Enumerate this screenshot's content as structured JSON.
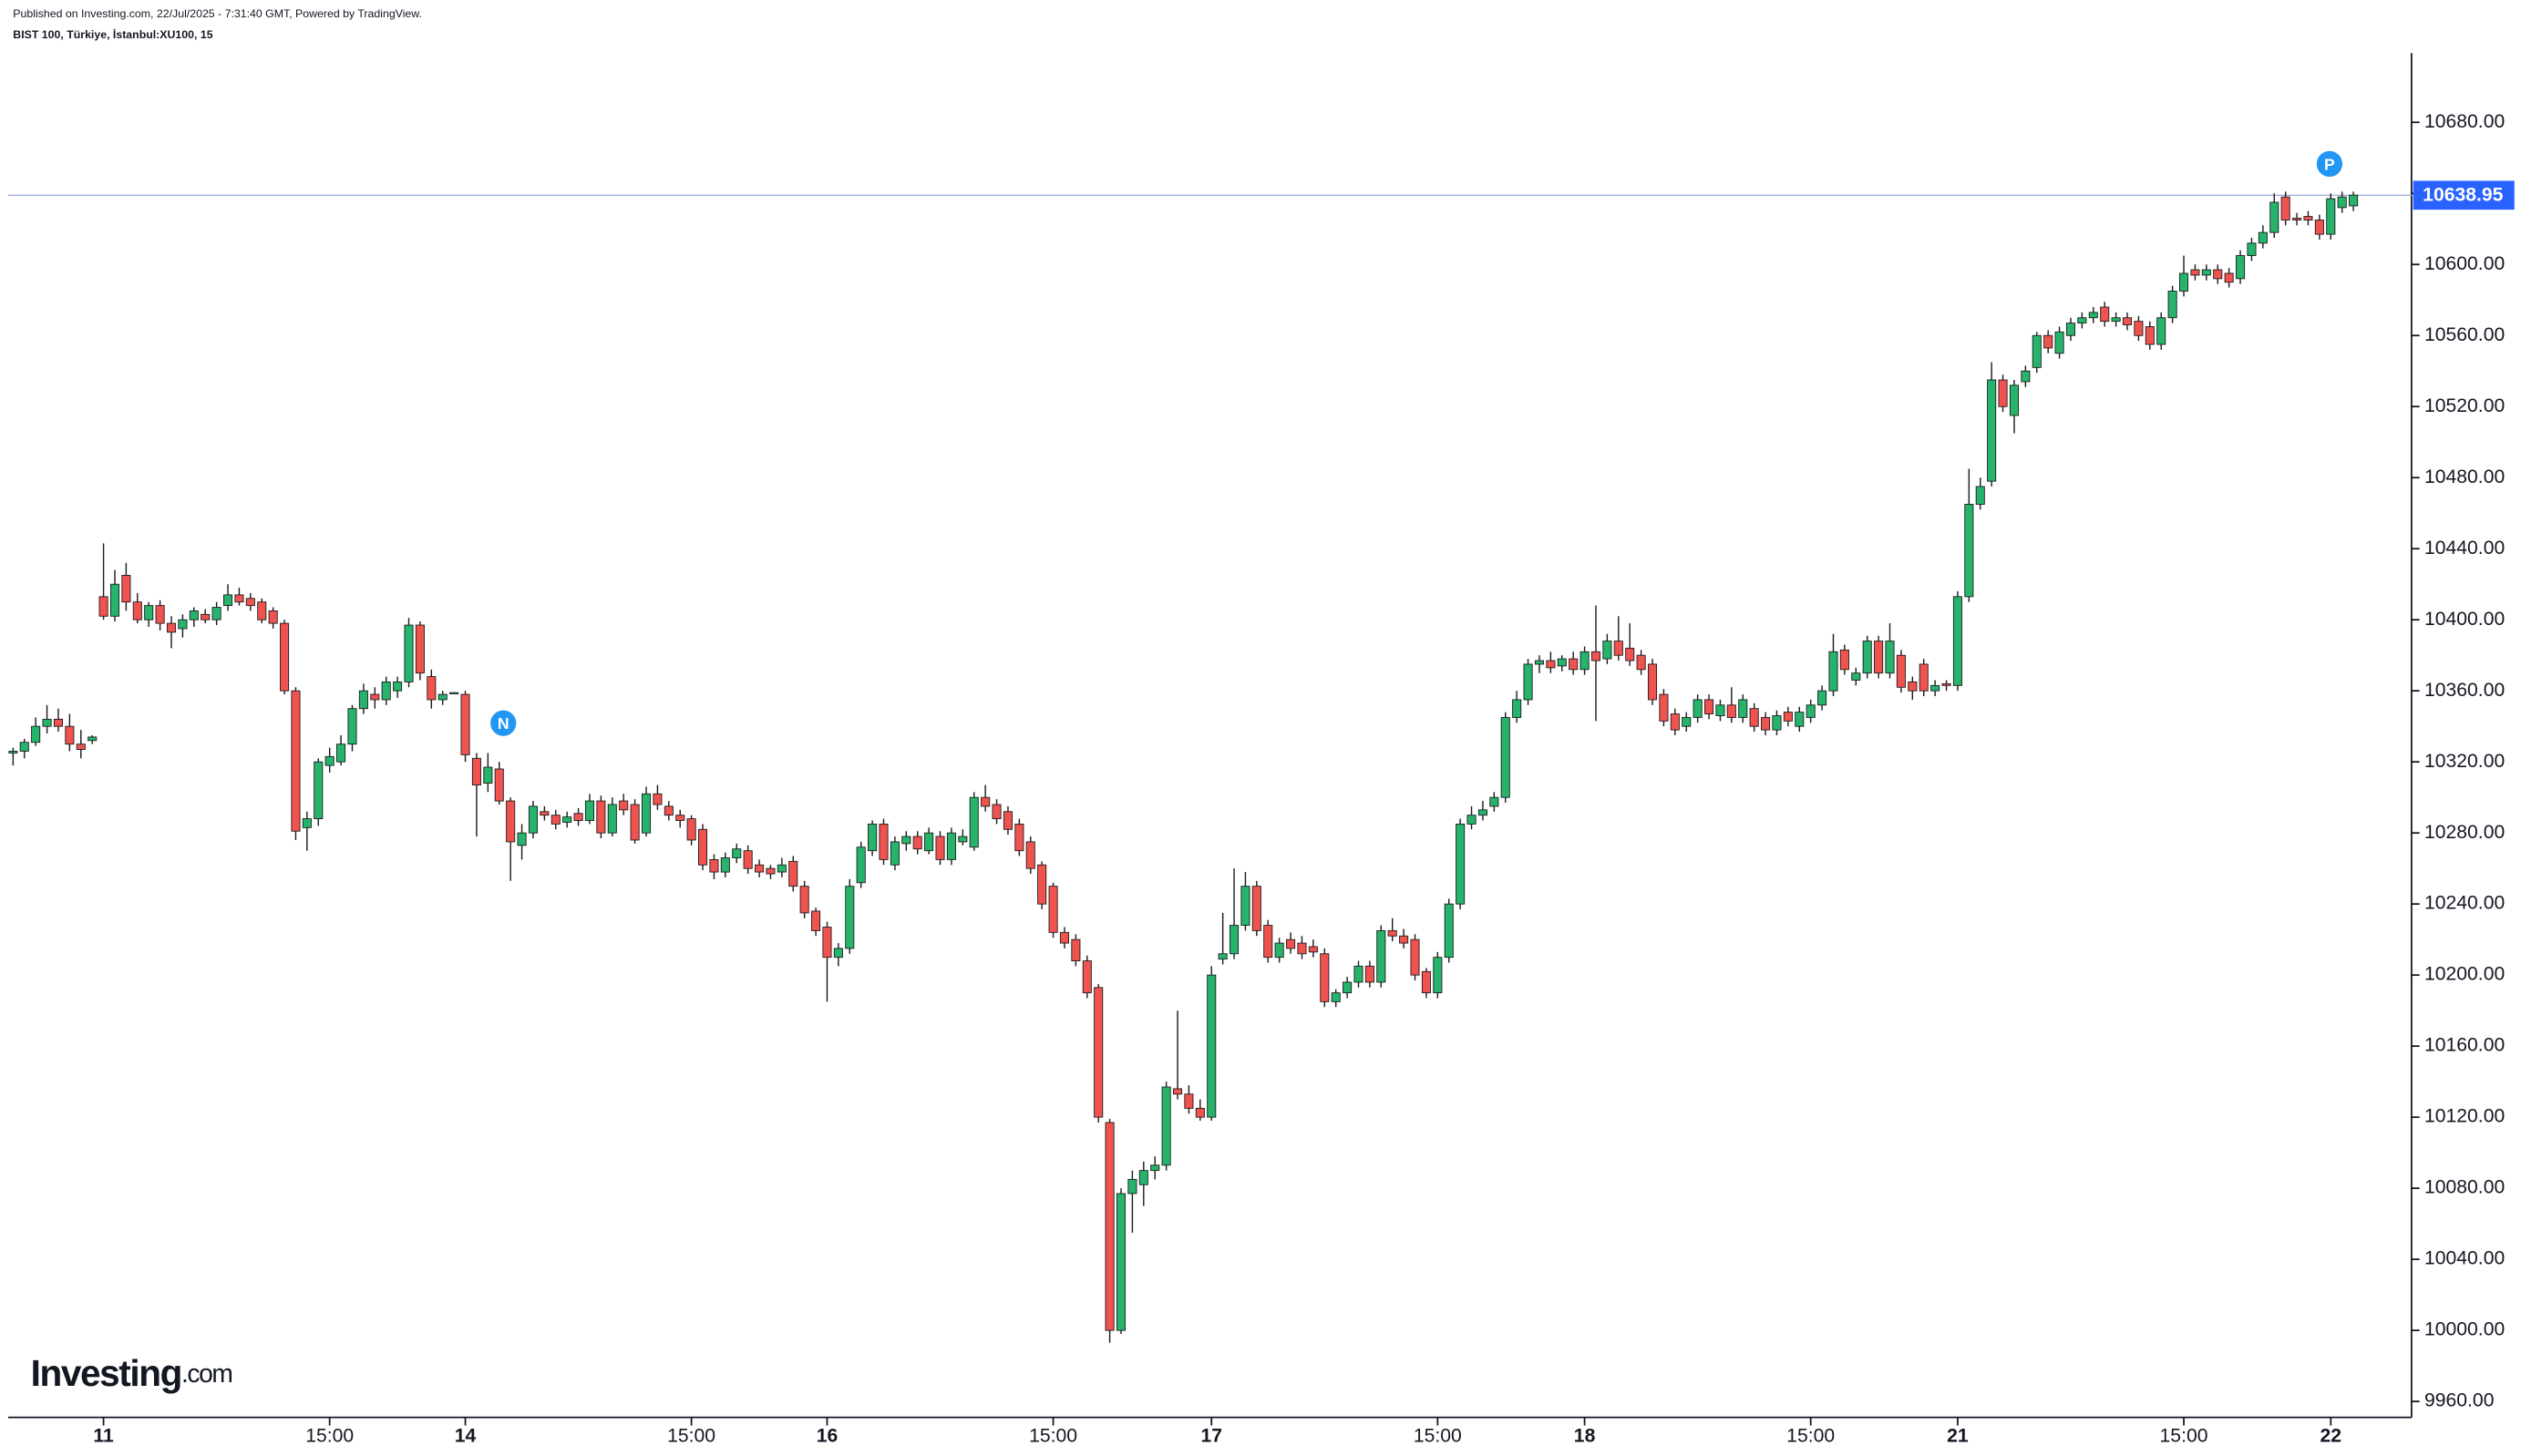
{
  "chart_data": {
    "type": "candlestick",
    "subtitle": "Published on Investing.com, 22/Jul/2025 - 7:31:40 GMT, Powered by TradingView.",
    "title": "BIST 100, Türkiye, İstanbul:XU100, 15",
    "brand": [
      "Investing",
      ".com"
    ],
    "markers": [
      "N",
      "P"
    ],
    "up_color": "#26b36b",
    "down_color": "#ef5350",
    "last_price": {
      "value": 10638.95,
      "label": "10638.95"
    },
    "last_price_color": "#2962ff",
    "xlim": [
      -1,
      212
    ],
    "xticks": [
      {
        "value": 8,
        "label": "11"
      },
      {
        "value": 28,
        "label": "15:00"
      },
      {
        "value": 40,
        "label": "14"
      },
      {
        "value": 60,
        "label": "15:00"
      },
      {
        "value": 72,
        "label": "16"
      },
      {
        "value": 92,
        "label": "15:00"
      },
      {
        "value": 106,
        "label": "17"
      },
      {
        "value": 126,
        "label": "15:00"
      },
      {
        "value": 139,
        "label": "18"
      },
      {
        "value": 159,
        "label": "15:00"
      },
      {
        "value": 172,
        "label": "21"
      },
      {
        "value": 192,
        "label": "15:00"
      },
      {
        "value": 205,
        "label": "22"
      }
    ],
    "ylim": [
      9951,
      10719
    ],
    "yticks": [
      {
        "value": 9960,
        "label": "9960.00"
      },
      {
        "value": 10000,
        "label": "10000.00"
      },
      {
        "value": 10040,
        "label": "10040.00"
      },
      {
        "value": 10080,
        "label": "10080.00"
      },
      {
        "value": 10120,
        "label": "10120.00"
      },
      {
        "value": 10160,
        "label": "10160.00"
      },
      {
        "value": 10200,
        "label": "10200.00"
      },
      {
        "value": 10240,
        "label": "10240.00"
      },
      {
        "value": 10280,
        "label": "10280.00"
      },
      {
        "value": 10320,
        "label": "10320.00"
      },
      {
        "value": 10360,
        "label": "10360.00"
      },
      {
        "value": 10400,
        "label": "10400.00"
      },
      {
        "value": 10440,
        "label": "10440.00"
      },
      {
        "value": 10480,
        "label": "10480.00"
      },
      {
        "value": 10520,
        "label": "10520.00"
      },
      {
        "value": 10560,
        "label": "10560.00"
      },
      {
        "value": 10600,
        "label": "10600.00"
      },
      {
        "value": 10640,
        "label": "10640.00"
      },
      {
        "value": 10680,
        "label": "10680.00"
      }
    ],
    "ohlc": [
      [
        10325,
        10328,
        10318,
        10326
      ],
      [
        10326,
        10333,
        10322,
        10331
      ],
      [
        10331,
        10345,
        10329,
        10340
      ],
      [
        10340,
        10352,
        10336,
        10344
      ],
      [
        10344,
        10350,
        10337,
        10340
      ],
      [
        10340,
        10347,
        10326,
        10330
      ],
      [
        10330,
        10338,
        10322,
        10327
      ],
      [
        10332,
        10335,
        10330,
        10334
      ],
      [
        10413,
        10443,
        10400,
        10402
      ],
      [
        10402,
        10428,
        10399,
        10420
      ],
      [
        10425,
        10432,
        10405,
        10410
      ],
      [
        10410,
        10415,
        10398,
        10400
      ],
      [
        10400,
        10410,
        10396,
        10408
      ],
      [
        10408,
        10411,
        10394,
        10398
      ],
      [
        10398,
        10402,
        10384,
        10393
      ],
      [
        10395,
        10403,
        10390,
        10400
      ],
      [
        10400,
        10407,
        10396,
        10405
      ],
      [
        10403,
        10406,
        10398,
        10400
      ],
      [
        10400,
        10410,
        10397,
        10407
      ],
      [
        10408,
        10420,
        10405,
        10414
      ],
      [
        10414,
        10418,
        10408,
        10410
      ],
      [
        10412,
        10415,
        10405,
        10408
      ],
      [
        10410,
        10412,
        10398,
        10400
      ],
      [
        10405,
        10407,
        10395,
        10398
      ],
      [
        10398,
        10400,
        10358,
        10360
      ],
      [
        10360,
        10362,
        10276,
        10281
      ],
      [
        10283,
        10292,
        10270,
        10288
      ],
      [
        10288,
        10322,
        10284,
        10320
      ],
      [
        10318,
        10328,
        10314,
        10323
      ],
      [
        10320,
        10335,
        10318,
        10330
      ],
      [
        10330,
        10352,
        10326,
        10350
      ],
      [
        10350,
        10364,
        10347,
        10360
      ],
      [
        10358,
        10362,
        10350,
        10355
      ],
      [
        10355,
        10368,
        10352,
        10365
      ],
      [
        10360,
        10368,
        10356,
        10365
      ],
      [
        10365,
        10401,
        10362,
        10397
      ],
      [
        10397,
        10399,
        10366,
        10370
      ],
      [
        10368,
        10372,
        10350,
        10355
      ],
      [
        10355,
        10360,
        10352,
        10358
      ],
      [
        10359,
        10359,
        10359,
        10359
      ],
      [
        10358,
        10360,
        10320,
        10324
      ],
      [
        10322,
        10325,
        10278,
        10307
      ],
      [
        10308,
        10325,
        10303,
        10317
      ],
      [
        10316,
        10320,
        10296,
        10298
      ],
      [
        10298,
        10300,
        10253,
        10275
      ],
      [
        10273,
        10285,
        10265,
        10280
      ],
      [
        10280,
        10298,
        10277,
        10295
      ],
      [
        10292,
        10295,
        10287,
        10290
      ],
      [
        10290,
        10293,
        10282,
        10285
      ],
      [
        10286,
        10292,
        10283,
        10289
      ],
      [
        10291,
        10294,
        10284,
        10287
      ],
      [
        10287,
        10302,
        10285,
        10298
      ],
      [
        10298,
        10301,
        10277,
        10280
      ],
      [
        10280,
        10300,
        10278,
        10296
      ],
      [
        10298,
        10302,
        10290,
        10293
      ],
      [
        10296,
        10299,
        10274,
        10276
      ],
      [
        10280,
        10306,
        10278,
        10302
      ],
      [
        10302,
        10307,
        10293,
        10296
      ],
      [
        10295,
        10298,
        10287,
        10290
      ],
      [
        10290,
        10293,
        10283,
        10287
      ],
      [
        10288,
        10290,
        10273,
        10276
      ],
      [
        10282,
        10285,
        10259,
        10262
      ],
      [
        10265,
        10268,
        10254,
        10258
      ],
      [
        10258,
        10269,
        10255,
        10266
      ],
      [
        10266,
        10274,
        10263,
        10271
      ],
      [
        10270,
        10273,
        10257,
        10260
      ],
      [
        10262,
        10265,
        10255,
        10258
      ],
      [
        10260,
        10262,
        10254,
        10257
      ],
      [
        10258,
        10266,
        10255,
        10262
      ],
      [
        10264,
        10267,
        10247,
        10250
      ],
      [
        10250,
        10253,
        10232,
        10235
      ],
      [
        10236,
        10238,
        10222,
        10225
      ],
      [
        10227,
        10230,
        10185,
        10210
      ],
      [
        10210,
        10218,
        10205,
        10215
      ],
      [
        10215,
        10254,
        10212,
        10250
      ],
      [
        10252,
        10275,
        10249,
        10272
      ],
      [
        10270,
        10287,
        10267,
        10285
      ],
      [
        10285,
        10288,
        10262,
        10265
      ],
      [
        10262,
        10278,
        10259,
        10275
      ],
      [
        10274,
        10281,
        10270,
        10278
      ],
      [
        10278,
        10281,
        10268,
        10271
      ],
      [
        10270,
        10283,
        10268,
        10280
      ],
      [
        10278,
        10281,
        10262,
        10265
      ],
      [
        10265,
        10283,
        10262,
        10280
      ],
      [
        10275,
        10282,
        10273,
        10278
      ],
      [
        10272,
        10303,
        10270,
        10300
      ],
      [
        10300,
        10307,
        10292,
        10295
      ],
      [
        10296,
        10299,
        10285,
        10288
      ],
      [
        10292,
        10295,
        10279,
        10282
      ],
      [
        10285,
        10288,
        10267,
        10270
      ],
      [
        10275,
        10278,
        10257,
        10260
      ],
      [
        10262,
        10264,
        10237,
        10240
      ],
      [
        10250,
        10252,
        10221,
        10224
      ],
      [
        10224,
        10227,
        10215,
        10218
      ],
      [
        10220,
        10223,
        10205,
        10208
      ],
      [
        10208,
        10211,
        10187,
        10190
      ],
      [
        10193,
        10195,
        10117,
        10120
      ],
      [
        10117,
        10119,
        9993,
        10000
      ],
      [
        10000,
        10080,
        9998,
        10077
      ],
      [
        10077,
        10090,
        10055,
        10085
      ],
      [
        10082,
        10095,
        10070,
        10090
      ],
      [
        10090,
        10098,
        10085,
        10093
      ],
      [
        10093,
        10140,
        10090,
        10137
      ],
      [
        10136,
        10180,
        10130,
        10133
      ],
      [
        10133,
        10138,
        10122,
        10125
      ],
      [
        10125,
        10130,
        10118,
        10120
      ],
      [
        10120,
        10205,
        10118,
        10200
      ],
      [
        10209,
        10235,
        10206,
        10212
      ],
      [
        10212,
        10260,
        10209,
        10228
      ],
      [
        10228,
        10258,
        10225,
        10250
      ],
      [
        10250,
        10253,
        10222,
        10225
      ],
      [
        10228,
        10231,
        10207,
        10210
      ],
      [
        10210,
        10221,
        10207,
        10218
      ],
      [
        10220,
        10224,
        10212,
        10215
      ],
      [
        10218,
        10222,
        10209,
        10212
      ],
      [
        10216,
        10220,
        10210,
        10213
      ],
      [
        10212,
        10215,
        10182,
        10185
      ],
      [
        10185,
        10192,
        10182,
        10190
      ],
      [
        10190,
        10199,
        10187,
        10196
      ],
      [
        10196,
        10208,
        10193,
        10205
      ],
      [
        10205,
        10208,
        10193,
        10196
      ],
      [
        10196,
        10228,
        10193,
        10225
      ],
      [
        10225,
        10232,
        10219,
        10222
      ],
      [
        10222,
        10226,
        10215,
        10218
      ],
      [
        10220,
        10223,
        10197,
        10200
      ],
      [
        10202,
        10204,
        10187,
        10190
      ],
      [
        10190,
        10213,
        10187,
        10210
      ],
      [
        10210,
        10243,
        10207,
        10240
      ],
      [
        10240,
        10288,
        10237,
        10285
      ],
      [
        10285,
        10295,
        10282,
        10290
      ],
      [
        10290,
        10298,
        10287,
        10293
      ],
      [
        10295,
        10303,
        10292,
        10300
      ],
      [
        10300,
        10348,
        10297,
        10345
      ],
      [
        10345,
        10360,
        10342,
        10355
      ],
      [
        10355,
        10378,
        10352,
        10375
      ],
      [
        10375,
        10380,
        10370,
        10377
      ],
      [
        10377,
        10382,
        10370,
        10373
      ],
      [
        10374,
        10380,
        10371,
        10378
      ],
      [
        10378,
        10382,
        10369,
        10372
      ],
      [
        10372,
        10385,
        10369,
        10382
      ],
      [
        10382,
        10408,
        10343,
        10377
      ],
      [
        10378,
        10392,
        10375,
        10388
      ],
      [
        10388,
        10402,
        10377,
        10380
      ],
      [
        10384,
        10398,
        10374,
        10377
      ],
      [
        10380,
        10383,
        10369,
        10372
      ],
      [
        10375,
        10378,
        10352,
        10355
      ],
      [
        10358,
        10361,
        10340,
        10343
      ],
      [
        10347,
        10350,
        10335,
        10338
      ],
      [
        10340,
        10348,
        10337,
        10345
      ],
      [
        10345,
        10358,
        10342,
        10355
      ],
      [
        10355,
        10358,
        10344,
        10347
      ],
      [
        10346,
        10355,
        10343,
        10352
      ],
      [
        10352,
        10362,
        10342,
        10345
      ],
      [
        10345,
        10358,
        10342,
        10355
      ],
      [
        10350,
        10353,
        10337,
        10340
      ],
      [
        10345,
        10348,
        10335,
        10338
      ],
      [
        10338,
        10349,
        10335,
        10346
      ],
      [
        10348,
        10351,
        10340,
        10343
      ],
      [
        10340,
        10351,
        10337,
        10348
      ],
      [
        10345,
        10355,
        10342,
        10352
      ],
      [
        10352,
        10363,
        10349,
        10360
      ],
      [
        10360,
        10392,
        10357,
        10382
      ],
      [
        10383,
        10386,
        10369,
        10372
      ],
      [
        10366,
        10373,
        10363,
        10370
      ],
      [
        10370,
        10391,
        10367,
        10388
      ],
      [
        10388,
        10391,
        10367,
        10370
      ],
      [
        10370,
        10398,
        10367,
        10388
      ],
      [
        10380,
        10383,
        10359,
        10362
      ],
      [
        10365,
        10368,
        10355,
        10360
      ],
      [
        10375,
        10378,
        10357,
        10360
      ],
      [
        10360,
        10366,
        10357,
        10363
      ],
      [
        10364,
        10366,
        10360,
        10363
      ],
      [
        10363,
        10416,
        10360,
        10413
      ],
      [
        10413,
        10485,
        10410,
        10465
      ],
      [
        10465,
        10480,
        10462,
        10475
      ],
      [
        10478,
        10545,
        10475,
        10535
      ],
      [
        10535,
        10538,
        10517,
        10520
      ],
      [
        10515,
        10535,
        10505,
        10532
      ],
      [
        10534,
        10543,
        10531,
        10540
      ],
      [
        10542,
        10562,
        10539,
        10560
      ],
      [
        10560,
        10563,
        10550,
        10553
      ],
      [
        10550,
        10565,
        10547,
        10562
      ],
      [
        10560,
        10570,
        10557,
        10567
      ],
      [
        10567,
        10573,
        10564,
        10570
      ],
      [
        10570,
        10576,
        10567,
        10573
      ],
      [
        10576,
        10579,
        10565,
        10568
      ],
      [
        10568,
        10573,
        10565,
        10570
      ],
      [
        10570,
        10573,
        10563,
        10566
      ],
      [
        10568,
        10571,
        10557,
        10560
      ],
      [
        10565,
        10568,
        10552,
        10555
      ],
      [
        10555,
        10573,
        10552,
        10570
      ],
      [
        10570,
        10588,
        10567,
        10585
      ],
      [
        10585,
        10605,
        10582,
        10595
      ],
      [
        10597,
        10600,
        10591,
        10594
      ],
      [
        10594,
        10600,
        10591,
        10597
      ],
      [
        10597,
        10600,
        10589,
        10592
      ],
      [
        10595,
        10598,
        10587,
        10590
      ],
      [
        10592,
        10608,
        10589,
        10605
      ],
      [
        10605,
        10615,
        10602,
        10612
      ],
      [
        10612,
        10622,
        10609,
        10618
      ],
      [
        10618,
        10640,
        10615,
        10635
      ],
      [
        10638,
        10641,
        10622,
        10625
      ],
      [
        10626,
        10629,
        10622,
        10625
      ],
      [
        10627,
        10630,
        10622,
        10625
      ],
      [
        10625,
        10628,
        10614,
        10617
      ],
      [
        10617,
        10640,
        10614,
        10637
      ],
      [
        10632,
        10641,
        10629,
        10638
      ],
      [
        10633,
        10641,
        10630,
        10639
      ]
    ]
  }
}
